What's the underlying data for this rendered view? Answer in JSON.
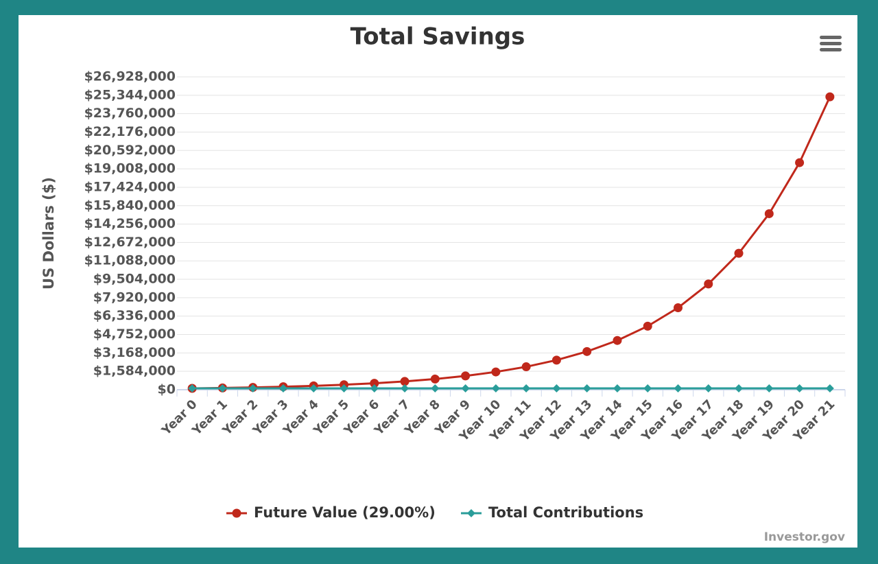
{
  "chart_data": {
    "type": "line",
    "title": "Total Savings",
    "ylabel": "US Dollars ($)",
    "credits": "Investor.gov",
    "categories": [
      "Year 0",
      "Year 1",
      "Year 2",
      "Year 3",
      "Year 4",
      "Year 5",
      "Year 6",
      "Year 7",
      "Year 8",
      "Year 9",
      "Year 10",
      "Year 11",
      "Year 12",
      "Year 13",
      "Year 14",
      "Year 15",
      "Year 16",
      "Year 17",
      "Year 18",
      "Year 19",
      "Year 20",
      "Year 21"
    ],
    "series": [
      {
        "name": "Future Value (29.00%)",
        "color": "#c0281b",
        "marker": "circle",
        "values": [
          120000,
          154800,
          199692,
          257603,
          332308,
          428678,
          552994,
          713362,
          920237,
          1187106,
          1531367,
          1975464,
          2548348,
          3287369,
          4240706,
          5470511,
          7056959,
          9103477,
          11743486,
          15149097,
          19542335,
          25209612
        ]
      },
      {
        "name": "Total Contributions",
        "color": "#2a9d9a",
        "marker": "diamond",
        "values": [
          120000,
          120000,
          120000,
          120000,
          120000,
          120000,
          120000,
          120000,
          120000,
          120000,
          120000,
          120000,
          120000,
          120000,
          120000,
          120000,
          120000,
          120000,
          120000,
          120000,
          120000,
          120000
        ]
      }
    ],
    "ylim": [
      0,
      26928000
    ],
    "yticks": [
      {
        "value": 0,
        "label": "$0"
      },
      {
        "value": 1584000,
        "label": "$1,584,000"
      },
      {
        "value": 3168000,
        "label": "$3,168,000"
      },
      {
        "value": 4752000,
        "label": "$4,752,000"
      },
      {
        "value": 6336000,
        "label": "$6,336,000"
      },
      {
        "value": 7920000,
        "label": "$7,920,000"
      },
      {
        "value": 9504000,
        "label": "$9,504,000"
      },
      {
        "value": 11088000,
        "label": "$11,088,000"
      },
      {
        "value": 12672000,
        "label": "$12,672,000"
      },
      {
        "value": 14256000,
        "label": "$14,256,000"
      },
      {
        "value": 15840000,
        "label": "$15,840,000"
      },
      {
        "value": 17424000,
        "label": "$17,424,000"
      },
      {
        "value": 19008000,
        "label": "$19,008,000"
      },
      {
        "value": 20592000,
        "label": "$20,592,000"
      },
      {
        "value": 22176000,
        "label": "$22,176,000"
      },
      {
        "value": 23760000,
        "label": "$23,760,000"
      },
      {
        "value": 25344000,
        "label": "$25,344,000"
      },
      {
        "value": 26928000,
        "label": "$26,928,000"
      }
    ],
    "grid": true,
    "legend": "bottom"
  }
}
